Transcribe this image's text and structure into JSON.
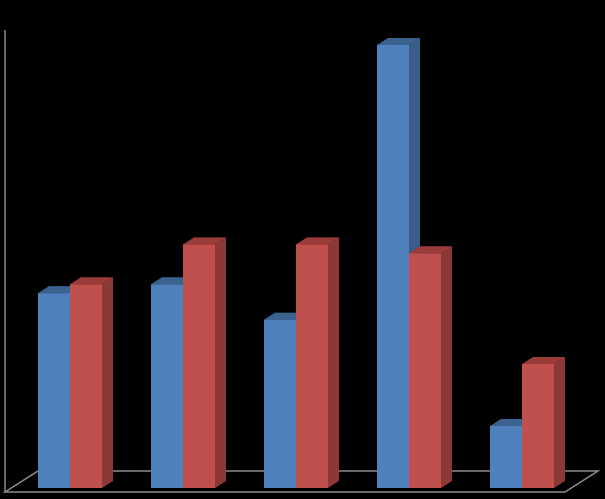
{
  "chart_data": {
    "type": "bar",
    "style": "3d-clustered-column",
    "categories": [
      "",
      "",
      "",
      "",
      ""
    ],
    "series": [
      {
        "values": [
          4.4,
          4.6,
          3.8,
          10.0,
          1.4
        ],
        "color": "#4F81BD",
        "top_color": "#3A6390",
        "side_color": "#385D8A"
      },
      {
        "values": [
          4.6,
          5.5,
          5.5,
          5.3,
          2.8
        ],
        "color": "#C0504D",
        "top_color": "#9A3C3A",
        "side_color": "#8C3836"
      }
    ],
    "ylim": [
      0,
      10
    ],
    "grid": false,
    "legend": "none",
    "background": "#000000",
    "axis_color": "#8c8c8c"
  }
}
